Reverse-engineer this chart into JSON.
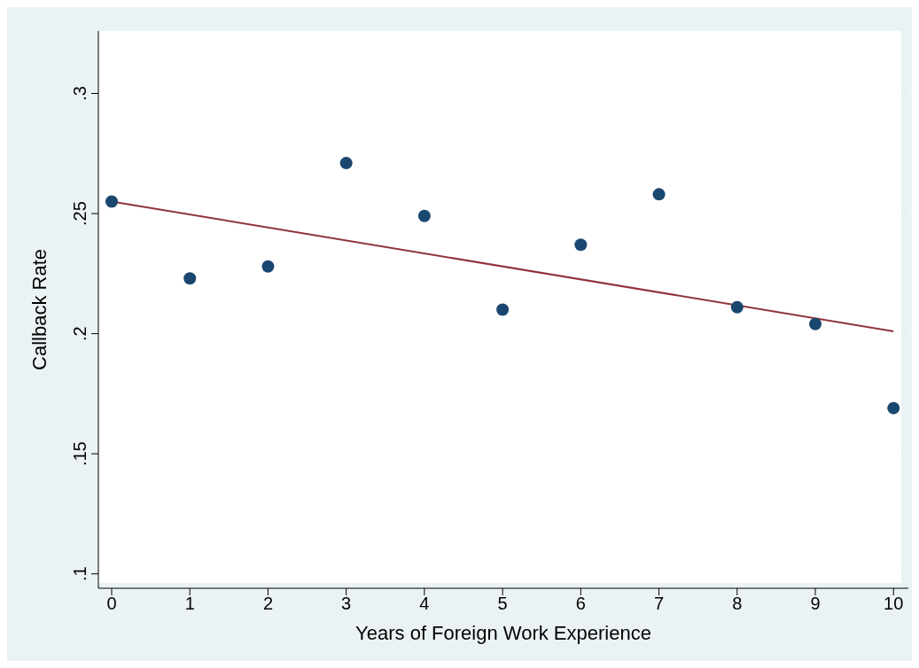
{
  "chart_data": {
    "type": "scatter",
    "xlabel": "Years of Foreign Work Experience",
    "ylabel": "Callback Rate",
    "xlim": [
      -0.17,
      10.19
    ],
    "xticks": [
      0,
      1,
      2,
      3,
      4,
      5,
      6,
      7,
      8,
      9,
      10
    ],
    "ylim": [
      0.094,
      0.326
    ],
    "yticks": [
      {
        "value": 0.1,
        "label": ".1"
      },
      {
        "value": 0.15,
        "label": ".15"
      },
      {
        "value": 0.2,
        "label": ".2"
      },
      {
        "value": 0.25,
        "label": ".25"
      },
      {
        "value": 0.3,
        "label": ".3"
      }
    ],
    "grid": "y",
    "legend": false,
    "series": [
      {
        "color": "#1a476f",
        "marker": "circle",
        "x": [
          0,
          1,
          2,
          3,
          4,
          5,
          6,
          7,
          8,
          9,
          10
        ],
        "values": [
          0.255,
          0.223,
          0.228,
          0.271,
          0.249,
          0.21,
          0.237,
          0.258,
          0.211,
          0.204,
          0.169
        ]
      },
      {
        "type": "line",
        "color": "#90353b",
        "line_style": "solid",
        "x": [
          0,
          10
        ],
        "values": [
          0.255,
          0.201
        ]
      }
    ]
  }
}
